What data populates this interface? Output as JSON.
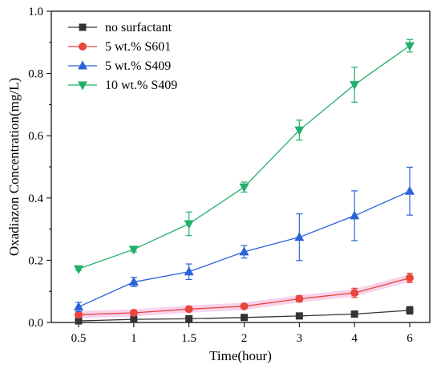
{
  "chart_data": {
    "type": "line",
    "title": "",
    "xlabel": "Time(hour)",
    "ylabel": "Oxadiazon Concentration(mg/L)",
    "categories": [
      "0.5",
      "1",
      "1.5",
      "2",
      "3",
      "4",
      "6"
    ],
    "ylim": [
      0,
      1.0
    ],
    "yticks": [
      "0.0",
      "0.2",
      "0.4",
      "0.6",
      "0.8",
      "1.0"
    ],
    "grid": false,
    "legend_position": "top-left",
    "series": [
      {
        "name": "no surfactant",
        "color": "#333333",
        "marker": "square",
        "values": [
          0.005,
          0.01,
          0.012,
          0.016,
          0.021,
          0.027,
          0.039
        ],
        "errors": [
          0.004,
          0.004,
          0.004,
          0.004,
          0.005,
          0.005,
          0.012
        ]
      },
      {
        "name": "5 wt.% S601",
        "color": "#e8453c",
        "marker": "circle",
        "values": [
          0.025,
          0.031,
          0.043,
          0.052,
          0.076,
          0.095,
          0.143
        ],
        "errors": [
          0.005,
          0.006,
          0.006,
          0.006,
          0.01,
          0.015,
          0.015
        ]
      },
      {
        "name": "5 wt.% S409",
        "color": "#2c62d8",
        "marker": "triangle-up",
        "values": [
          0.05,
          0.13,
          0.163,
          0.227,
          0.274,
          0.343,
          0.422
        ],
        "errors": [
          0.015,
          0.015,
          0.025,
          0.02,
          0.075,
          0.08,
          0.077
        ]
      },
      {
        "name": "10 wt.% S409",
        "color": "#22b069",
        "marker": "triangle-down",
        "values": [
          0.172,
          0.235,
          0.317,
          0.435,
          0.618,
          0.764,
          0.889
        ],
        "errors": [
          0.005,
          0.008,
          0.038,
          0.016,
          0.032,
          0.056,
          0.02
        ]
      }
    ]
  }
}
